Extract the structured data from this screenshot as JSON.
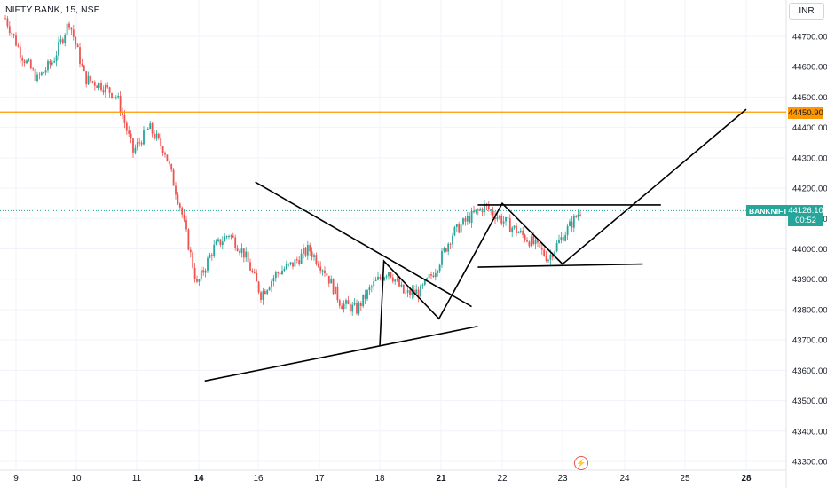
{
  "header": {
    "symbol_title": "NIFTY BANK, 15, NSE"
  },
  "currency": "INR",
  "price_axis": {
    "ticks": [
      "44700.00",
      "44600.00",
      "44500.00",
      "44400.00",
      "44300.00",
      "44200.00",
      "44100.00",
      "44000.00",
      "43900.00",
      "43800.00",
      "43700.00",
      "43600.00",
      "43500.00",
      "43400.00",
      "43300.00"
    ]
  },
  "time_axis": {
    "ticks": [
      "9",
      "10",
      "11",
      "14",
      "16",
      "17",
      "18",
      "21",
      "22",
      "23",
      "24",
      "25",
      "28"
    ]
  },
  "reference_line": {
    "label": "44450.90",
    "color": "#ff9800"
  },
  "last_price": {
    "ticker": "BANKNIFTY",
    "price": "44126.10",
    "countdown": "00:52",
    "color": "#26a69a"
  },
  "icons": {
    "flash": "flash-icon"
  },
  "colors": {
    "up": "#26a69a",
    "down": "#ef5350",
    "grid": "#f0f3fa",
    "axis_text": "#131722",
    "drawing": "#000000"
  },
  "chart_data": {
    "type": "candlestick",
    "title": "NIFTY BANK, 15, NSE",
    "xlabel": "",
    "ylabel": "",
    "ylim": [
      43260,
      44800
    ],
    "x_ticks": [
      "9",
      "10",
      "11",
      "14",
      "16",
      "17",
      "18",
      "21",
      "22",
      "23",
      "24",
      "25",
      "28"
    ],
    "y_ticks": [
      44700,
      44600,
      44500,
      44400,
      44300,
      44200,
      44100,
      44000,
      43900,
      43800,
      43700,
      43600,
      43500,
      43400,
      43300
    ],
    "horizontal_levels": [
      {
        "value": 44450.9,
        "color": "#ff9800"
      }
    ],
    "last_price": 44126.1,
    "price_path": [
      [
        "9",
        44760
      ],
      [
        "9",
        44640
      ],
      [
        "9",
        44560
      ],
      [
        "10",
        44620
      ],
      [
        "10",
        44750
      ],
      [
        "10",
        44560
      ],
      [
        "10",
        44540
      ],
      [
        "11",
        44500
      ],
      [
        "11",
        44320
      ],
      [
        "11",
        44400
      ],
      [
        "14",
        44320
      ],
      [
        "14",
        44130
      ],
      [
        "14",
        43880
      ],
      [
        "14",
        44000
      ],
      [
        "14",
        44050
      ],
      [
        "16",
        43980
      ],
      [
        "16",
        43850
      ],
      [
        "16",
        43920
      ],
      [
        "16",
        43950
      ],
      [
        "17",
        44000
      ],
      [
        "17",
        43930
      ],
      [
        "17",
        43820
      ],
      [
        "18",
        43800
      ],
      [
        "18",
        43880
      ],
      [
        "18",
        43930
      ],
      [
        "18",
        43850
      ],
      [
        "21",
        43860
      ],
      [
        "21",
        43940
      ],
      [
        "21",
        44050
      ],
      [
        "22",
        44100
      ],
      [
        "22",
        44140
      ],
      [
        "22",
        44100
      ],
      [
        "22",
        44060
      ],
      [
        "23",
        44020
      ],
      [
        "23",
        43970
      ],
      [
        "23",
        44050
      ],
      [
        "23",
        44126.1
      ]
    ],
    "annotations": [
      {
        "type": "trendline",
        "points": [
          [
            "15.9",
            44220
          ],
          [
            "21.5",
            43810
          ]
        ]
      },
      {
        "type": "trendline",
        "points": [
          [
            "14.2",
            43565
          ],
          [
            "21.6",
            43745
          ]
        ]
      },
      {
        "type": "polyline",
        "points": [
          [
            "18",
            43680
          ],
          [
            "18.2",
            43960
          ],
          [
            "20.9",
            43770
          ],
          [
            "22",
            44150
          ],
          [
            "23",
            43950
          ],
          [
            "28",
            44460
          ]
        ]
      },
      {
        "type": "horizontal_segment",
        "points": [
          [
            "21.6",
            44145
          ],
          [
            "24.6",
            44145
          ]
        ]
      },
      {
        "type": "horizontal_segment",
        "points": [
          [
            "21.6",
            43940
          ],
          [
            "24.3",
            43950
          ]
        ]
      }
    ]
  }
}
